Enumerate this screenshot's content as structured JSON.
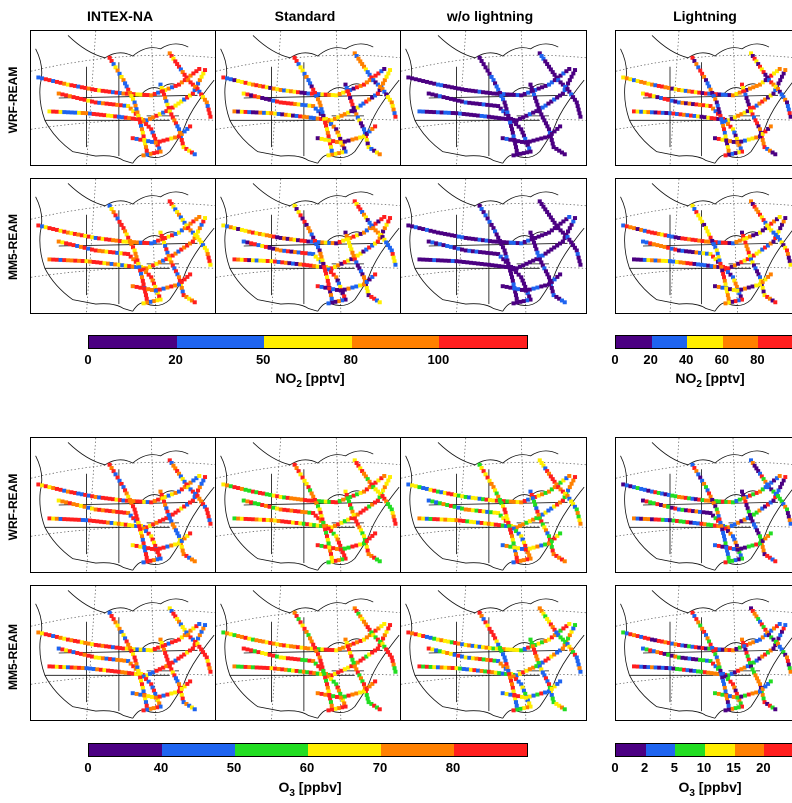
{
  "columns": [
    "INTEX-NA",
    "Standard",
    "w/o lightning",
    "Lightning"
  ],
  "rows": [
    "WRF-REAM",
    "MM5-REAM",
    "WRF-REAM",
    "MM5-REAM"
  ],
  "no2_scale": {
    "label_main": "NO",
    "label_sub": "2",
    "label_unit": " [pptv]",
    "ticks": [
      "0",
      "20",
      "50",
      "80",
      "100"
    ],
    "colors": [
      "#4b0082",
      "#1e64f0",
      "#ffee00",
      "#ff8000",
      "#ff1e1e"
    ]
  },
  "no2_lightning_scale": {
    "label_main": "NO",
    "label_sub": "2",
    "label_unit": " [pptv]",
    "ticks": [
      "0",
      "20",
      "40",
      "60",
      "80"
    ],
    "colors": [
      "#4b0082",
      "#1e64f0",
      "#ffee00",
      "#ff8000",
      "#ff1e1e"
    ]
  },
  "o3_scale": {
    "label_main": "O",
    "label_sub": "3",
    "label_unit": " [ppbv]",
    "ticks": [
      "0",
      "40",
      "50",
      "60",
      "70",
      "80"
    ],
    "colors": [
      "#4b0082",
      "#1e64f0",
      "#22dd22",
      "#ffee00",
      "#ff8000",
      "#ff1e1e"
    ]
  },
  "o3_lightning_scale": {
    "label_main": "O",
    "label_sub": "3",
    "label_unit": " [ppbv]",
    "ticks": [
      "0",
      "2",
      "5",
      "10",
      "15",
      "20"
    ],
    "colors": [
      "#4b0082",
      "#1e64f0",
      "#22dd22",
      "#ffee00",
      "#ff8000",
      "#ff1e1e"
    ]
  },
  "panel_palettes": {
    "no2_intex": [
      "#ff1e1e",
      "#ff1e1e",
      "#ff8000",
      "#ffee00",
      "#1e64f0"
    ],
    "no2_standard": [
      "#ff1e1e",
      "#ff8000",
      "#ffee00",
      "#1e64f0",
      "#4b0082"
    ],
    "no2_wo": [
      "#4b0082",
      "#4b0082",
      "#4b0082",
      "#4b0082",
      "#1e64f0"
    ],
    "no2_lightning": [
      "#4b0082",
      "#ff1e1e",
      "#ff8000",
      "#ffee00",
      "#1e64f0"
    ],
    "o3_intex": [
      "#ff1e1e",
      "#ff1e1e",
      "#ff8000",
      "#ffee00",
      "#1e64f0"
    ],
    "o3_standard": [
      "#ff1e1e",
      "#ff1e1e",
      "#ff8000",
      "#ffee00",
      "#22dd22"
    ],
    "o3_wo": [
      "#ff1e1e",
      "#ff8000",
      "#ffee00",
      "#22dd22",
      "#1e64f0"
    ],
    "o3_lightning": [
      "#4b0082",
      "#1e64f0",
      "#22dd22",
      "#ff1e1e",
      "#ff8000"
    ]
  }
}
